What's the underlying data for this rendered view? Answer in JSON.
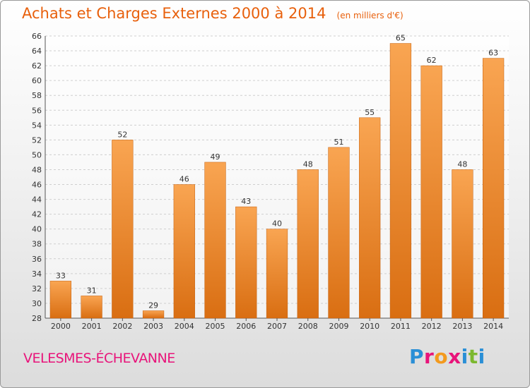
{
  "header": {
    "title": "Achats et Charges Externes 2000 à 2014",
    "subtitle": "(en milliers d'€)"
  },
  "footer": {
    "commune": "VELESMES-ÉCHEVANNE",
    "logo_letters": [
      "P",
      "r",
      "o",
      "x",
      "i",
      "t",
      "i"
    ]
  },
  "colors": {
    "bar_top": "#f9a552",
    "bar_bottom": "#d96e12",
    "bar_edge": "#c45f0c",
    "title": "#e8600c",
    "commune": "#e8147a",
    "logo": [
      "#2a8fd6",
      "#e8147a",
      "#f39a1e",
      "#e8147a",
      "#2a8fd6",
      "#7cb82f",
      "#2a8fd6"
    ]
  },
  "chart_data": {
    "type": "bar",
    "title": "Achats et Charges Externes 2000 à 2014",
    "subtitle": "(en milliers d'€)",
    "categories": [
      "2000",
      "2001",
      "2002",
      "2003",
      "2004",
      "2005",
      "2006",
      "2007",
      "2008",
      "2009",
      "2010",
      "2011",
      "2012",
      "2013",
      "2014"
    ],
    "values": [
      33,
      31,
      52,
      29,
      46,
      49,
      43,
      40,
      48,
      51,
      55,
      65,
      62,
      48,
      63
    ],
    "ylim": [
      28,
      66
    ],
    "yticks": [
      28,
      30,
      32,
      34,
      36,
      38,
      40,
      42,
      44,
      46,
      48,
      50,
      52,
      54,
      56,
      58,
      60,
      62,
      64,
      66
    ],
    "grid": true,
    "xlabel": "",
    "ylabel": ""
  }
}
